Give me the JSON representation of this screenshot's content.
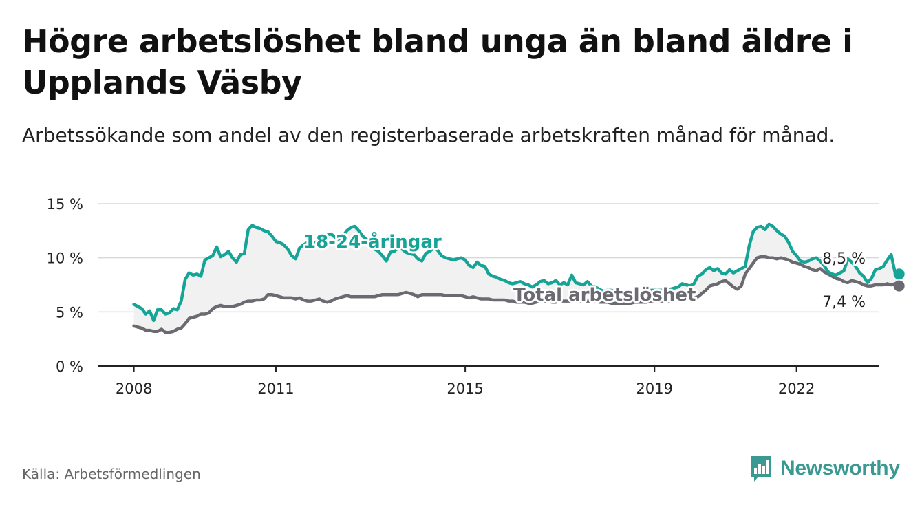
{
  "title": "Högre arbetslöshet bland unga än bland äldre i Upplands Väsby",
  "subtitle": "Arbetssökande som andel av den registerbaserade arbetskraften månad för månad.",
  "source": "Källa: Arbetsförmedlingen",
  "brand": {
    "name": "Newsworthy",
    "icon": "newsworthy-logo-icon"
  },
  "colors": {
    "youth": "#16a497",
    "total": "#6b6a70",
    "grid": "#d9d9d9",
    "axis": "#222222",
    "brand": "#3a9a92",
    "fill": "#f1f1f1"
  },
  "chart_data": {
    "type": "line",
    "ylim": [
      0,
      15
    ],
    "yticks": [
      0,
      5,
      10,
      15
    ],
    "ytick_labels": [
      "0 %",
      "5 %",
      "10 %",
      "15 %"
    ],
    "xticks": [
      2008,
      2011,
      2015,
      2019,
      2022
    ],
    "xtick_labels": [
      "2008",
      "2011",
      "2015",
      "2019",
      "2022"
    ],
    "xlim": [
      2007.25,
      2023.75
    ],
    "grid": true,
    "series": [
      {
        "name": "18-24-åringar",
        "label": "18-24-åringar",
        "end_label": "8,5 %",
        "x_start": 2008.0,
        "step": 0.0833333,
        "values": [
          5.7,
          5.5,
          5.3,
          4.8,
          5.1,
          4.2,
          5.2,
          5.2,
          4.8,
          4.9,
          5.3,
          5.2,
          6.0,
          8.0,
          8.6,
          8.4,
          8.5,
          8.3,
          9.8,
          10.0,
          10.2,
          11.0,
          10.1,
          10.3,
          10.6,
          10.0,
          9.6,
          10.3,
          10.4,
          12.6,
          13.0,
          12.8,
          12.7,
          12.5,
          12.4,
          12.0,
          11.5,
          11.4,
          11.2,
          10.8,
          10.2,
          9.9,
          10.9,
          11.2,
          11.4,
          11.6,
          11.3,
          11.8,
          12.0,
          12.1,
          12.2,
          11.9,
          11.7,
          12.0,
          12.5,
          12.8,
          12.9,
          12.5,
          12.0,
          11.7,
          11.2,
          10.8,
          10.6,
          10.2,
          9.7,
          10.5,
          10.6,
          10.9,
          10.8,
          10.5,
          10.4,
          10.3,
          9.9,
          9.7,
          10.4,
          10.6,
          10.9,
          10.7,
          10.2,
          10.0,
          9.9,
          9.8,
          9.9,
          10.0,
          9.8,
          9.3,
          9.1,
          9.6,
          9.3,
          9.2,
          8.5,
          8.3,
          8.2,
          8.0,
          7.9,
          7.7,
          7.6,
          7.7,
          7.8,
          7.6,
          7.5,
          7.3,
          7.5,
          7.8,
          7.9,
          7.6,
          7.7,
          7.9,
          7.5,
          7.7,
          7.5,
          8.4,
          7.7,
          7.6,
          7.5,
          7.8,
          7.4,
          7.3,
          7.1,
          6.9,
          7.0,
          7.0,
          6.9,
          6.7,
          6.8,
          6.7,
          6.6,
          6.7,
          6.8,
          6.7,
          6.9,
          7.0,
          7.0,
          7.0,
          7.0,
          7.1,
          7.1,
          7.2,
          7.3,
          7.6,
          7.5,
          7.4,
          7.6,
          8.3,
          8.5,
          8.9,
          9.1,
          8.8,
          9.0,
          8.6,
          8.5,
          8.9,
          8.6,
          8.8,
          9.0,
          9.2,
          11.1,
          12.4,
          12.8,
          12.9,
          12.6,
          13.1,
          12.9,
          12.5,
          12.2,
          12.0,
          11.4,
          10.6,
          10.2,
          9.7,
          9.6,
          9.7,
          9.9,
          10.0,
          9.7,
          9.3,
          8.7,
          8.5,
          8.4,
          8.6,
          8.8,
          9.9,
          9.6,
          9.2,
          8.6,
          8.3,
          7.7,
          8.1,
          8.9,
          9.0,
          9.2,
          9.8,
          10.3,
          8.6,
          8.5
        ]
      },
      {
        "name": "Total arbetslöshet",
        "label": "Total arbetslöshet",
        "end_label": "7,4 %",
        "x_start": 2008.0,
        "step": 0.0833333,
        "values": [
          3.7,
          3.6,
          3.5,
          3.3,
          3.3,
          3.2,
          3.2,
          3.4,
          3.1,
          3.1,
          3.2,
          3.4,
          3.5,
          3.9,
          4.4,
          4.5,
          4.6,
          4.8,
          4.8,
          4.9,
          5.3,
          5.5,
          5.6,
          5.5,
          5.5,
          5.5,
          5.6,
          5.7,
          5.9,
          6.0,
          6.0,
          6.1,
          6.1,
          6.2,
          6.6,
          6.6,
          6.5,
          6.4,
          6.3,
          6.3,
          6.3,
          6.2,
          6.3,
          6.1,
          6.0,
          6.0,
          6.1,
          6.2,
          6.0,
          5.9,
          6.0,
          6.2,
          6.3,
          6.4,
          6.5,
          6.4,
          6.4,
          6.4,
          6.4,
          6.4,
          6.4,
          6.4,
          6.5,
          6.6,
          6.6,
          6.6,
          6.6,
          6.6,
          6.7,
          6.8,
          6.7,
          6.6,
          6.4,
          6.6,
          6.6,
          6.6,
          6.6,
          6.6,
          6.6,
          6.5,
          6.5,
          6.5,
          6.5,
          6.5,
          6.4,
          6.3,
          6.4,
          6.3,
          6.2,
          6.2,
          6.2,
          6.1,
          6.1,
          6.1,
          6.1,
          6.0,
          6.0,
          5.9,
          5.9,
          5.9,
          5.8,
          5.8,
          5.9,
          6.0,
          6.0,
          6.0,
          5.9,
          5.9,
          6.0,
          6.0,
          6.0,
          6.0,
          6.1,
          6.0,
          6.0,
          6.0,
          6.0,
          6.0,
          5.9,
          5.9,
          5.9,
          5.8,
          5.8,
          5.8,
          5.8,
          5.8,
          5.8,
          5.9,
          5.9,
          5.9,
          5.9,
          6.0,
          6.0,
          6.0,
          6.0,
          6.0,
          6.0,
          6.1,
          6.1,
          6.1,
          6.1,
          6.2,
          6.3,
          6.4,
          6.7,
          7.0,
          7.4,
          7.5,
          7.6,
          7.8,
          7.9,
          7.6,
          7.3,
          7.1,
          7.4,
          8.5,
          9.0,
          9.5,
          10.0,
          10.1,
          10.1,
          10.0,
          10.0,
          9.9,
          10.0,
          9.9,
          9.8,
          9.6,
          9.5,
          9.4,
          9.2,
          9.1,
          8.9,
          8.8,
          9.0,
          8.7,
          8.5,
          8.3,
          8.1,
          8.0,
          7.8,
          7.7,
          7.9,
          7.8,
          7.7,
          7.5,
          7.4,
          7.4,
          7.5,
          7.5,
          7.5,
          7.6,
          7.5,
          7.6,
          7.4
        ]
      }
    ]
  }
}
